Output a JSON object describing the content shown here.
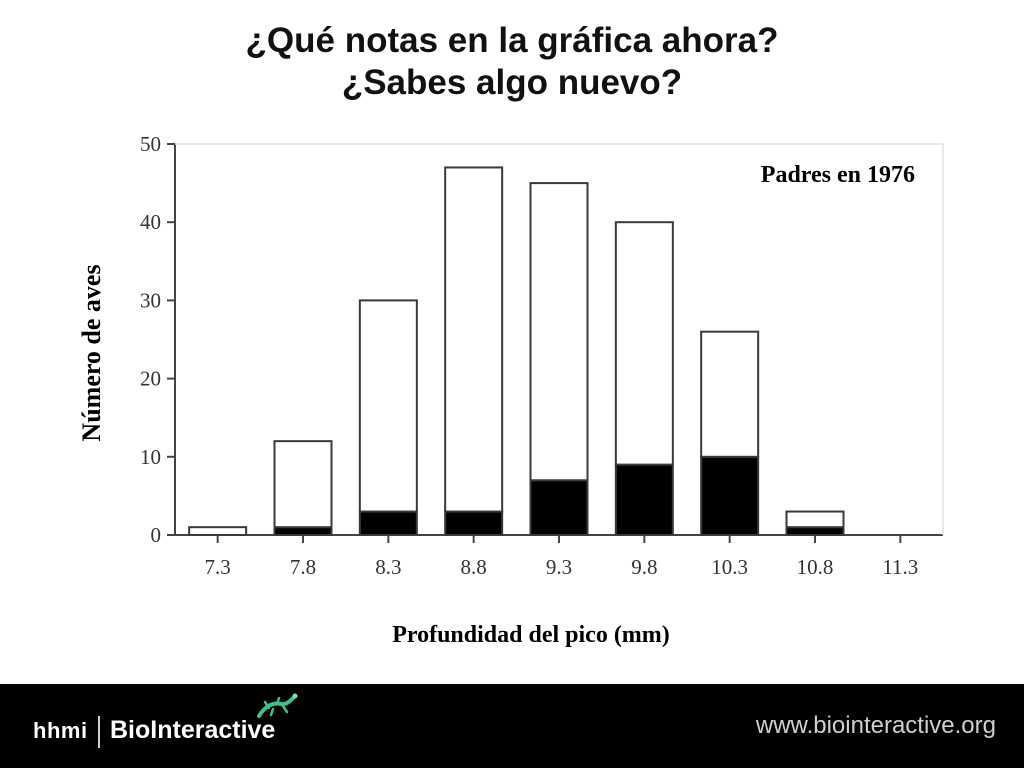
{
  "slide": {
    "title_line1": "¿Qué notas en la gráfica ahora?",
    "title_line2": "¿Sabes algo nuevo?"
  },
  "chart_data": {
    "type": "bar",
    "annotation": "Padres en 1976",
    "xlabel": "Profundidad del pico (mm)",
    "ylabel": "Número de aves",
    "categories": [
      "7.3",
      "7.8",
      "8.3",
      "8.8",
      "9.3",
      "9.8",
      "10.3",
      "10.8",
      "11.3"
    ],
    "ylim": [
      0,
      50
    ],
    "yticks": [
      0,
      10,
      20,
      30,
      40,
      50
    ],
    "ytick_labels": [
      "0",
      "10",
      "20",
      "30",
      "40",
      "50"
    ],
    "stacked": true,
    "series": [
      {
        "values": [
          0,
          1,
          3,
          3,
          7,
          9,
          10,
          1,
          0
        ],
        "color": "#000000"
      },
      {
        "values": [
          1,
          11,
          27,
          44,
          38,
          31,
          16,
          2,
          0
        ],
        "color": "#ffffff"
      }
    ],
    "totals": [
      1,
      12,
      30,
      47,
      45,
      40,
      26,
      3,
      0
    ],
    "grid": false
  },
  "footer": {
    "brand_short": "hhmi",
    "brand_name": "BioInteractive",
    "url": "www.biointeractive.org",
    "logo_icon": "lizard-icon",
    "background": "#000000"
  }
}
